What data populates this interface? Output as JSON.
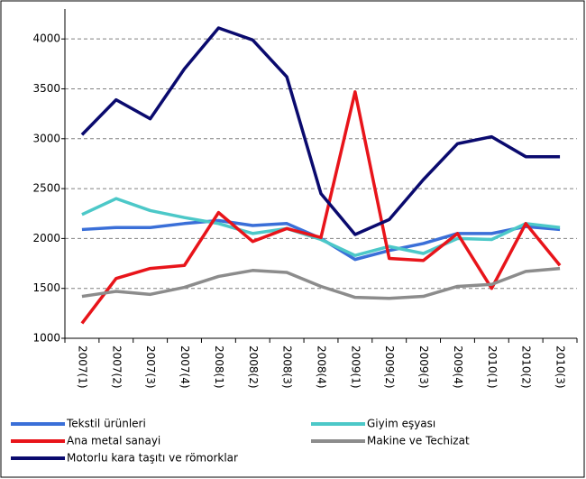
{
  "chart_data": {
    "type": "line",
    "categories": [
      "2007(1)",
      "2007(2)",
      "2007(3)",
      "2007(4)",
      "2008(1)",
      "2008(2)",
      "2008(3)",
      "2008(4)",
      "2009(1)",
      "2009(2)",
      "2009(3)",
      "2009(4)",
      "2010(1)",
      "2010(2)",
      "2010(3)"
    ],
    "series": [
      {
        "name": "Tekstil ürünleri",
        "color": "#3a6fd8",
        "values": [
          2090,
          2110,
          2110,
          2150,
          2180,
          2130,
          2150,
          2000,
          1790,
          1880,
          1950,
          2050,
          2050,
          2120,
          2090
        ]
      },
      {
        "name": "Giyim eşyası",
        "color": "#4cc8c8",
        "values": [
          2240,
          2400,
          2280,
          2210,
          2150,
          2050,
          2100,
          1990,
          1830,
          1920,
          1850,
          2000,
          1990,
          2150,
          2110
        ]
      },
      {
        "name": "Ana metal sanayi",
        "color": "#e8141a",
        "values": [
          1150,
          1600,
          1700,
          1730,
          2260,
          1970,
          2100,
          2010,
          3470,
          1800,
          1780,
          2050,
          1500,
          2150,
          1730
        ]
      },
      {
        "name": "Makine ve Techizat",
        "color": "#8c8c8c",
        "values": [
          1420,
          1470,
          1440,
          1510,
          1620,
          1680,
          1660,
          1520,
          1410,
          1400,
          1420,
          1520,
          1540,
          1670,
          1700
        ]
      },
      {
        "name": "Motorlu kara taşıtı ve römorklar",
        "color": "#0a0a6e",
        "values": [
          3040,
          3390,
          3200,
          3700,
          4110,
          3990,
          3620,
          2450,
          2040,
          2190,
          2590,
          2950,
          3020,
          2820,
          2820
        ]
      }
    ],
    "ylim": [
      1000,
      4300
    ],
    "yticks": [
      1000,
      1500,
      2000,
      2500,
      3000,
      3500,
      4000
    ],
    "grid": true,
    "legend": "bottom"
  }
}
